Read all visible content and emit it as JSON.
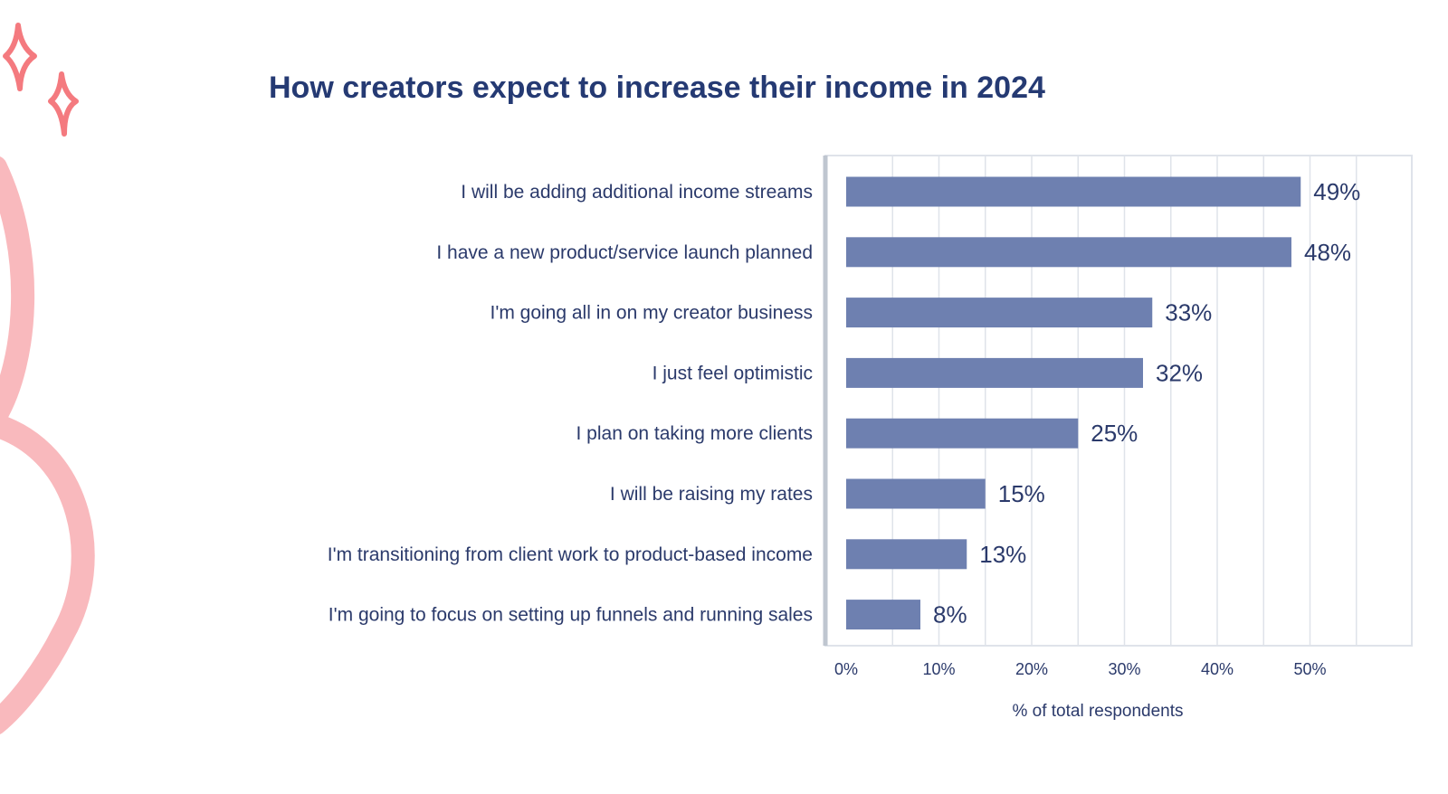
{
  "colors": {
    "title": "#253a73",
    "text": "#2b3a6b",
    "bar": "#6e80b0",
    "grid": "#dfe3ea",
    "axis": "#bfc6d0",
    "decor_sparkle": "#f47a7f",
    "decor_swirl": "#f9b9bd"
  },
  "decorations": [
    "sparkle-icon",
    "sparkle-icon",
    "swirl-shape"
  ],
  "chart_data": {
    "type": "bar",
    "orientation": "horizontal",
    "title": "How creators expect to increase their income in 2024",
    "xlabel": "% of total respondents",
    "ylabel": "",
    "xlim": [
      0,
      60
    ],
    "xticks": [
      "0%",
      "10%",
      "20%",
      "30%",
      "40%",
      "50%"
    ],
    "grid": true,
    "legend": "none",
    "categories": [
      "I will be adding additional income streams",
      "I have a new product/service launch planned",
      "I'm going all in on my creator business",
      "I just feel optimistic",
      "I plan on taking more clients",
      "I will be raising my rates",
      "I'm transitioning from client work to product-based income",
      "I'm going to focus on setting up funnels and running sales"
    ],
    "values": [
      49,
      48,
      33,
      32,
      25,
      15,
      13,
      8
    ],
    "value_labels": [
      "49%",
      "48%",
      "33%",
      "32%",
      "25%",
      "15%",
      "13%",
      "8%"
    ]
  }
}
